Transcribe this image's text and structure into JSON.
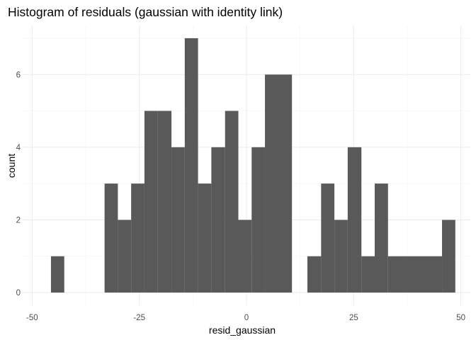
{
  "chart_data": {
    "type": "bar",
    "title": "Histogram of residuals (gaussian with identity link)",
    "xlabel": "resid_gaussian",
    "ylabel": "count",
    "xlim": [
      -50,
      50
    ],
    "ylim": [
      0,
      7
    ],
    "x_ticks": [
      -50,
      -25,
      0,
      25,
      50
    ],
    "x_tick_labels": [
      "-50",
      "-25",
      "0",
      "25",
      "50"
    ],
    "y_ticks": [
      0,
      2,
      4,
      6
    ],
    "y_tick_labels": [
      "0",
      "2",
      "4",
      "6"
    ],
    "grid": true,
    "bar_color": "#595959",
    "bins": [
      {
        "x0": -45.6,
        "x1": -42.5,
        "count": 1
      },
      {
        "x0": -33.1,
        "x1": -30.0,
        "count": 3
      },
      {
        "x0": -30.0,
        "x1": -26.9,
        "count": 2
      },
      {
        "x0": -26.9,
        "x1": -23.8,
        "count": 3
      },
      {
        "x0": -23.8,
        "x1": -20.7,
        "count": 5
      },
      {
        "x0": -20.7,
        "x1": -17.5,
        "count": 5
      },
      {
        "x0": -17.5,
        "x1": -14.4,
        "count": 4
      },
      {
        "x0": -14.4,
        "x1": -11.3,
        "count": 7
      },
      {
        "x0": -11.3,
        "x1": -8.2,
        "count": 3
      },
      {
        "x0": -8.2,
        "x1": -5.0,
        "count": 4
      },
      {
        "x0": -5.0,
        "x1": -1.9,
        "count": 5
      },
      {
        "x0": -1.9,
        "x1": 1.2,
        "count": 2
      },
      {
        "x0": 1.2,
        "x1": 4.3,
        "count": 4
      },
      {
        "x0": 4.3,
        "x1": 10.6,
        "count": 6
      },
      {
        "x0": 14.2,
        "x1": 17.4,
        "count": 1
      },
      {
        "x0": 17.4,
        "x1": 20.5,
        "count": 3
      },
      {
        "x0": 20.5,
        "x1": 23.6,
        "count": 2
      },
      {
        "x0": 23.6,
        "x1": 26.8,
        "count": 4
      },
      {
        "x0": 26.8,
        "x1": 29.9,
        "count": 1
      },
      {
        "x0": 29.9,
        "x1": 33.0,
        "count": 3
      },
      {
        "x0": 33.0,
        "x1": 45.6,
        "count": 1
      },
      {
        "x0": 45.6,
        "x1": 48.7,
        "count": 2
      }
    ]
  }
}
